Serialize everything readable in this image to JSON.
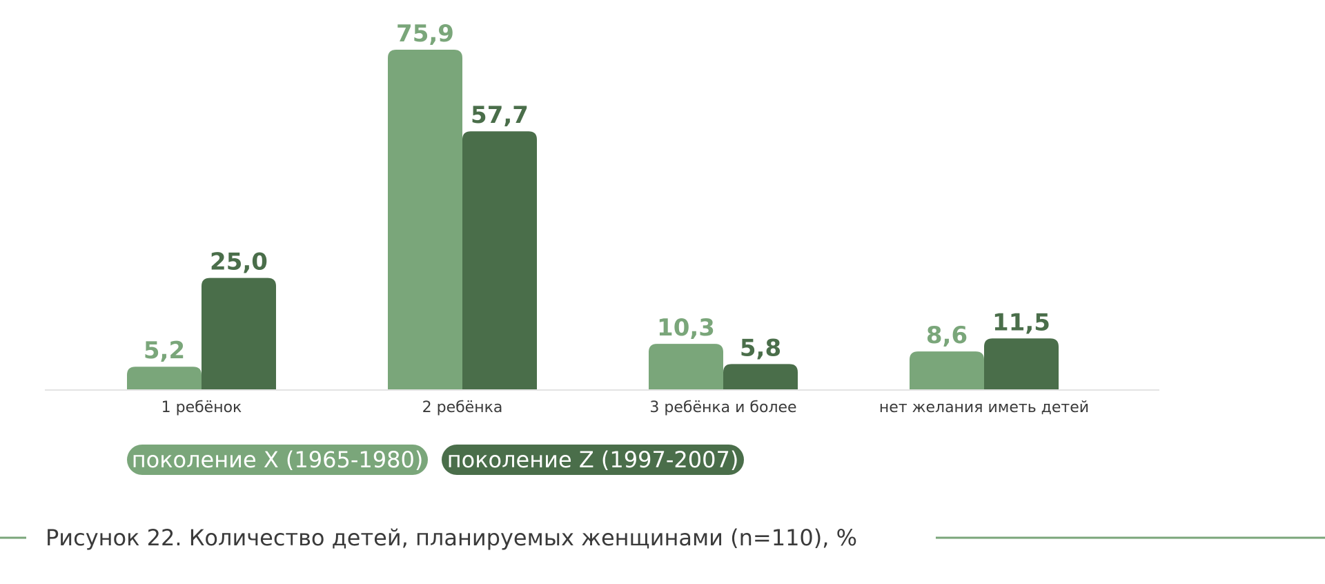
{
  "chart_data": {
    "type": "bar",
    "categories": [
      "1 ребёнок",
      "2 ребёнка",
      "3 ребёнка и более",
      "нет желания иметь детей"
    ],
    "series": [
      {
        "name": "поколение X (1965-1980)",
        "values": [
          5.2,
          75.9,
          10.3,
          8.6
        ],
        "labels": [
          "5,2",
          "75,9",
          "10,3",
          "8,6"
        ],
        "color": "#7aa67a"
      },
      {
        "name": "поколение Z (1997-2007)",
        "values": [
          25.0,
          57.7,
          5.8,
          11.5
        ],
        "labels": [
          "25,0",
          "57,7",
          "5,8",
          "11,5"
        ],
        "color": "#4a6e4a"
      }
    ],
    "ylim": [
      0,
      75.9
    ],
    "grid": false,
    "legend_position": "bottom-left",
    "caption": "Рисунок 22. Количество детей, планируемых женщинами (n=110), %",
    "caption_rule_color": "#7aa67a"
  }
}
